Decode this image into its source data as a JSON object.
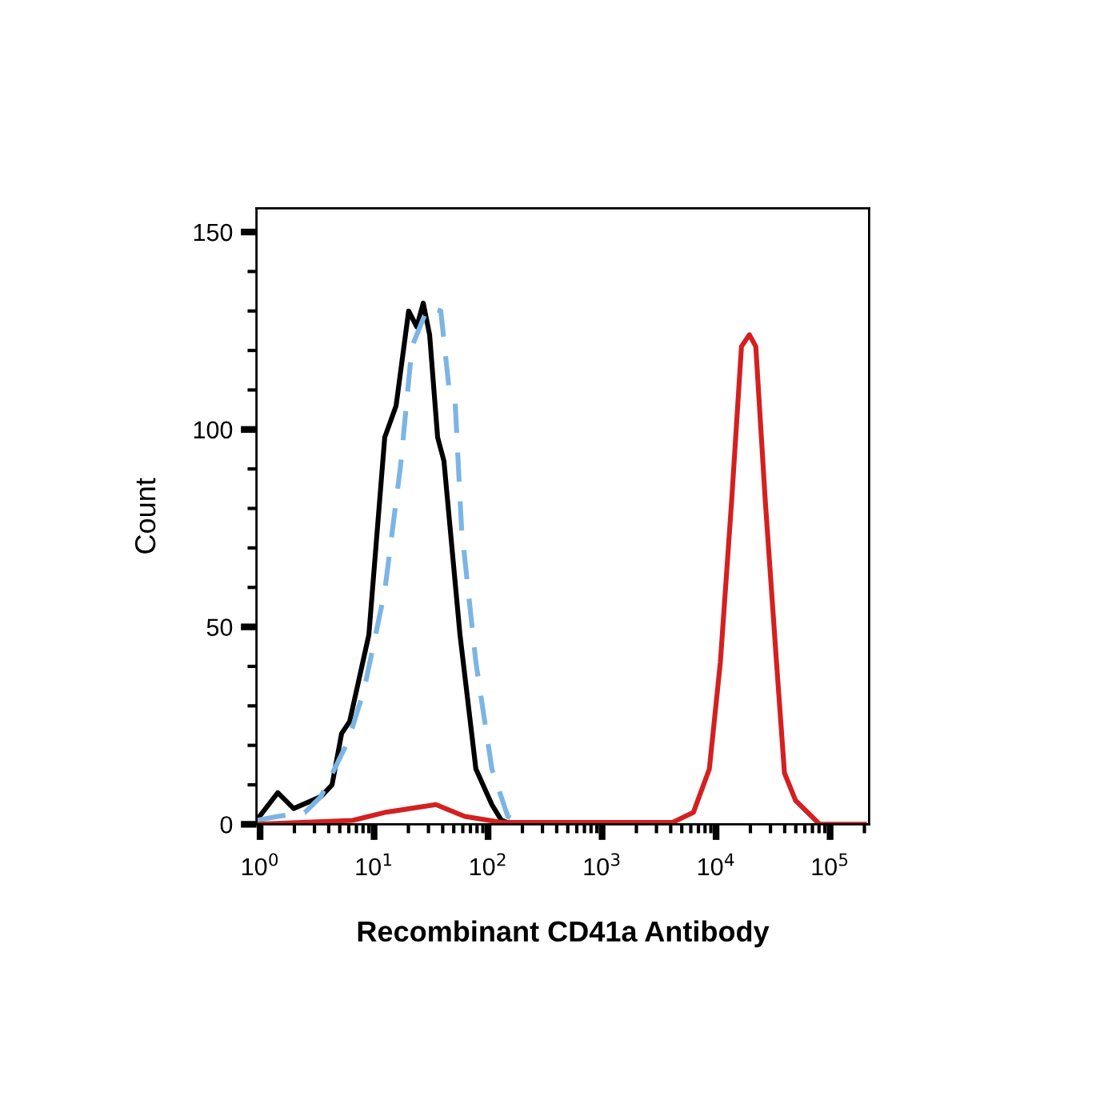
{
  "chart_data": {
    "type": "line",
    "xlabel": "Recombinant CD41a Antibody",
    "ylabel": "Count",
    "log": "x",
    "xlim": [
      0.93,
      220000
    ],
    "ylim": [
      0,
      156
    ],
    "xticks": [
      {
        "value": 1,
        "label": "10$^{0}$"
      },
      {
        "value": 10,
        "label": "10$^{1}$"
      },
      {
        "value": 100,
        "label": "10$^{2}$"
      },
      {
        "value": 1000,
        "label": "10$^{3}$"
      },
      {
        "value": 10000,
        "label": "10$^{4}$"
      },
      {
        "value": 100000,
        "label": "10$^{5}$"
      }
    ],
    "yticks": [
      0,
      {
        "value": 10,
        "label": null
      },
      {
        "value": 20,
        "label": null
      },
      {
        "value": 30,
        "label": null
      },
      {
        "value": 40,
        "label": null
      },
      50,
      {
        "value": 60,
        "label": null
      },
      {
        "value": 70,
        "label": null
      },
      {
        "value": 80,
        "label": null
      },
      {
        "value": 90,
        "label": null
      },
      100,
      {
        "value": 110,
        "label": null
      },
      {
        "value": 120,
        "label": null
      },
      {
        "value": 130,
        "label": null
      },
      {
        "value": 140,
        "label": null
      },
      150
    ],
    "grid": false,
    "legend": false,
    "marker": "none",
    "series": [
      {
        "color": "#000000",
        "line_style": "solid",
        "x": [
          0.93,
          1.43,
          1.97,
          3.41,
          4.28,
          5.19,
          6.1,
          9.0,
          12.4,
          15.6,
          20.1,
          23.7,
          27.0,
          30.7,
          36.1,
          41.0,
          56.7,
          78.2,
          108,
          131,
          164
        ],
        "values": [
          1,
          8,
          4,
          7,
          10,
          23,
          26,
          48,
          98,
          106,
          130,
          126,
          132,
          124,
          98,
          92,
          48,
          14,
          5,
          1,
          0
        ]
      },
      {
        "color": "#7cb5e4",
        "line_style": "dashed",
        "x": [
          0.93,
          1.43,
          2.47,
          3.41,
          5.91,
          8.16,
          12.4,
          17.1,
          21.5,
          29.7,
          38.5,
          45.2,
          51.4,
          58.5,
          78.2,
          108,
          149,
          206
        ],
        "values": [
          1,
          2,
          3,
          7,
          21,
          34,
          59,
          91,
          121,
          131,
          130,
          111,
          107,
          75,
          41,
          14,
          2,
          0
        ]
      },
      {
        "color": "#d42020",
        "line_style": "solid",
        "x": [
          0.93,
          6.5,
          12.4,
          34.9,
          62.4,
          131,
          4160,
          6320,
          8730,
          10900,
          13700,
          16700,
          19600,
          22300,
          27000,
          33900,
          39800,
          49900,
          69000,
          81100,
          200000
        ],
        "values": [
          0,
          1,
          3,
          5,
          2,
          0.5,
          0.5,
          3,
          14,
          41,
          82,
          121,
          124,
          121,
          82,
          41,
          13,
          6,
          2,
          0,
          0
        ]
      }
    ]
  }
}
